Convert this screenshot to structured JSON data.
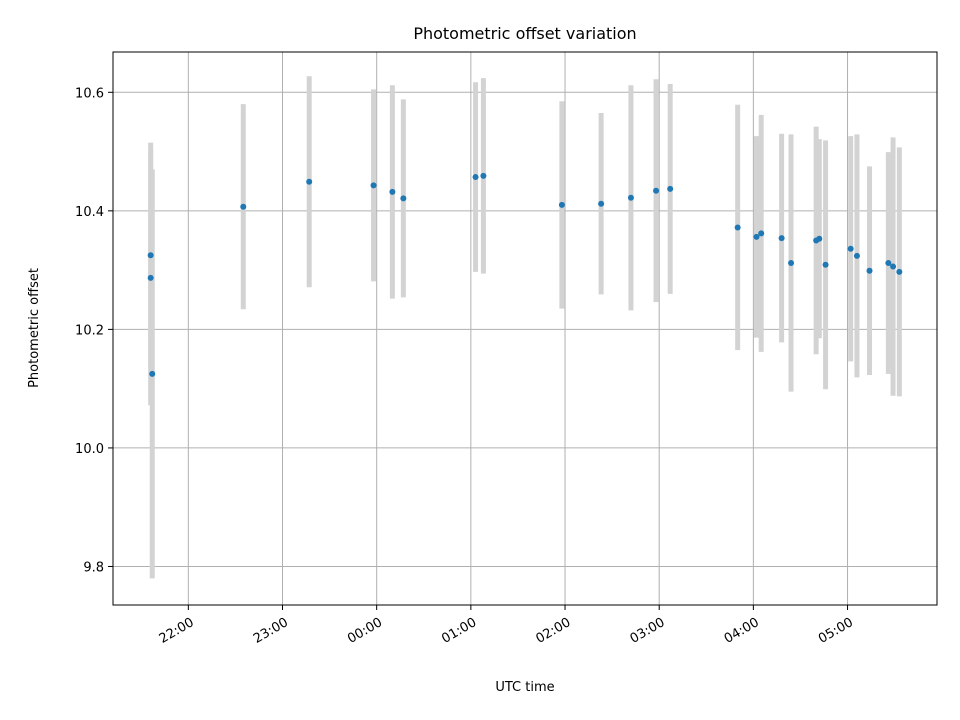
{
  "chart_data": {
    "type": "scatter",
    "title": "Photometric offset variation",
    "xlabel": "UTC time",
    "ylabel": "Photometric offset",
    "x_ticks": [
      "22:00",
      "23:00",
      "00:00",
      "01:00",
      "02:00",
      "03:00",
      "04:00",
      "05:00"
    ],
    "y_ticks": [
      "9.8",
      "10.0",
      "10.2",
      "10.4",
      "10.6"
    ],
    "y_tick_values": [
      9.8,
      10.0,
      10.2,
      10.4,
      10.6
    ],
    "ylim": [
      9.735,
      10.668
    ],
    "xlim": [
      "21:12",
      "05:57"
    ],
    "grid": true,
    "colors": {
      "point": "#1f77b4",
      "errorbar": "#d3d3d3",
      "grid": "#b0b0b0"
    },
    "points": [
      {
        "t": "21:36",
        "y": 10.325,
        "err": 0.19
      },
      {
        "t": "21:36",
        "y": 10.287,
        "err": 0.215
      },
      {
        "t": "21:37",
        "y": 10.125,
        "err": 0.345
      },
      {
        "t": "22:35",
        "y": 10.407,
        "err": 0.173
      },
      {
        "t": "23:17",
        "y": 10.449,
        "err": 0.178
      },
      {
        "t": "23:58",
        "y": 10.443,
        "err": 0.162
      },
      {
        "t": "00:10",
        "y": 10.432,
        "err": 0.18
      },
      {
        "t": "00:17",
        "y": 10.421,
        "err": 0.167
      },
      {
        "t": "01:03",
        "y": 10.457,
        "err": 0.16
      },
      {
        "t": "01:08",
        "y": 10.459,
        "err": 0.165
      },
      {
        "t": "01:58",
        "y": 10.41,
        "err": 0.175
      },
      {
        "t": "02:23",
        "y": 10.412,
        "err": 0.153
      },
      {
        "t": "02:42",
        "y": 10.422,
        "err": 0.19
      },
      {
        "t": "02:58",
        "y": 10.434,
        "err": 0.188
      },
      {
        "t": "03:07",
        "y": 10.437,
        "err": 0.177
      },
      {
        "t": "03:50",
        "y": 10.372,
        "err": 0.207
      },
      {
        "t": "04:02",
        "y": 10.356,
        "err": 0.17
      },
      {
        "t": "04:05",
        "y": 10.362,
        "err": 0.2
      },
      {
        "t": "04:18",
        "y": 10.354,
        "err": 0.176
      },
      {
        "t": "04:24",
        "y": 10.312,
        "err": 0.217
      },
      {
        "t": "04:40",
        "y": 10.35,
        "err": 0.192
      },
      {
        "t": "04:42",
        "y": 10.353,
        "err": 0.168
      },
      {
        "t": "04:46",
        "y": 10.309,
        "err": 0.21
      },
      {
        "t": "05:02",
        "y": 10.336,
        "err": 0.19
      },
      {
        "t": "05:06",
        "y": 10.324,
        "err": 0.205
      },
      {
        "t": "05:14",
        "y": 10.299,
        "err": 0.176
      },
      {
        "t": "05:26",
        "y": 10.312,
        "err": 0.187
      },
      {
        "t": "05:29",
        "y": 10.306,
        "err": 0.218
      },
      {
        "t": "05:33",
        "y": 10.297,
        "err": 0.21
      }
    ]
  }
}
